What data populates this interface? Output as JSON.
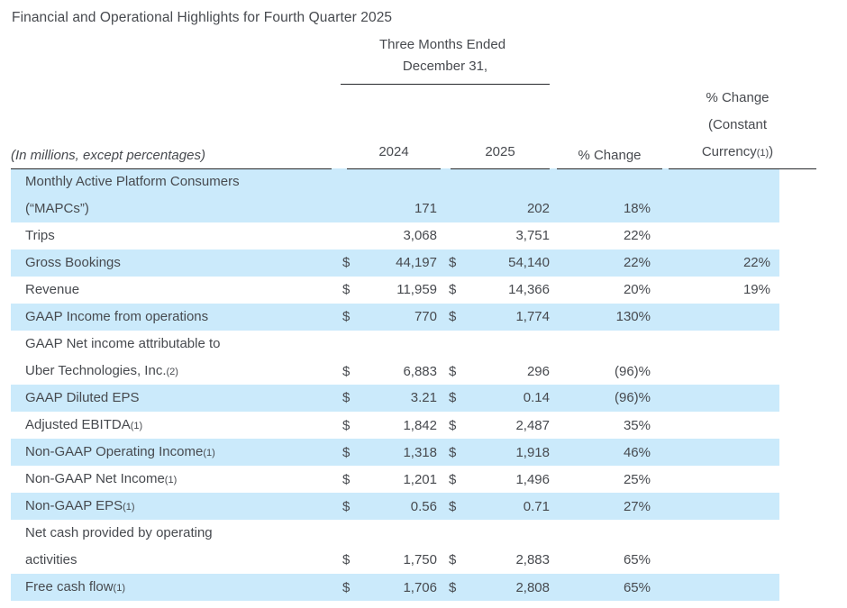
{
  "page": {
    "title": "Financial and Operational Highlights for Fourth Quarter 2025"
  },
  "colors": {
    "highlight_row": "#cbeafb",
    "text": "#474a4f",
    "rule": "#26282b"
  },
  "table": {
    "period_header": {
      "line1": "Three Months Ended",
      "line2": "December 31,"
    },
    "row_label_note": "(In millions, except percentages)",
    "columns": {
      "y2024": "2024",
      "y2025": "2025",
      "pct_change": "% Change",
      "pct_change_cc": {
        "line1": "% Change",
        "line2": "(Constant",
        "line3_text": "Currency",
        "line3_footnote": "(1)",
        "line3_suffix": ")"
      }
    },
    "rows": [
      {
        "highlight": true,
        "lines": [
          {
            "text": "Monthly Active Platform Consumers",
            "fn": ""
          },
          {
            "text": "(“MAPCs”)",
            "fn": ""
          }
        ],
        "d2024": "",
        "v2024": "171",
        "d2025": "",
        "v2025": "202",
        "chg": "18%",
        "cc": ""
      },
      {
        "highlight": false,
        "lines": [
          {
            "text": "Trips",
            "fn": ""
          }
        ],
        "d2024": "",
        "v2024": "3,068",
        "d2025": "",
        "v2025": "3,751",
        "chg": "22%",
        "cc": ""
      },
      {
        "highlight": true,
        "lines": [
          {
            "text": "Gross Bookings",
            "fn": ""
          }
        ],
        "d2024": "$",
        "v2024": "44,197",
        "d2025": "$",
        "v2025": "54,140",
        "chg": "22%",
        "cc": "22%"
      },
      {
        "highlight": false,
        "lines": [
          {
            "text": "Revenue",
            "fn": ""
          }
        ],
        "d2024": "$",
        "v2024": "11,959",
        "d2025": "$",
        "v2025": "14,366",
        "chg": "20%",
        "cc": "19%"
      },
      {
        "highlight": true,
        "lines": [
          {
            "text": "GAAP Income from operations",
            "fn": ""
          }
        ],
        "d2024": "$",
        "v2024": "770",
        "d2025": "$",
        "v2025": "1,774",
        "chg": "130%",
        "cc": ""
      },
      {
        "highlight": false,
        "lines": [
          {
            "text": "GAAP Net income attributable to",
            "fn": ""
          },
          {
            "text": "Uber Technologies, Inc.",
            "fn": "(2)"
          }
        ],
        "d2024": "$",
        "v2024": "6,883",
        "d2025": "$",
        "v2025": "296",
        "chg": "(96)%",
        "cc": ""
      },
      {
        "highlight": true,
        "lines": [
          {
            "text": "GAAP Diluted EPS",
            "fn": ""
          }
        ],
        "d2024": "$",
        "v2024": "3.21",
        "d2025": "$",
        "v2025": "0.14",
        "chg": "(96)%",
        "cc": ""
      },
      {
        "highlight": false,
        "lines": [
          {
            "text": "Adjusted EBITDA",
            "fn": "(1)"
          }
        ],
        "d2024": "$",
        "v2024": "1,842",
        "d2025": "$",
        "v2025": "2,487",
        "chg": "35%",
        "cc": ""
      },
      {
        "highlight": true,
        "lines": [
          {
            "text": "Non-GAAP Operating Income",
            "fn": "(1)"
          }
        ],
        "d2024": "$",
        "v2024": "1,318",
        "d2025": "$",
        "v2025": "1,918",
        "chg": "46%",
        "cc": ""
      },
      {
        "highlight": false,
        "lines": [
          {
            "text": "Non-GAAP Net Income",
            "fn": "(1)"
          }
        ],
        "d2024": "$",
        "v2024": "1,201",
        "d2025": "$",
        "v2025": "1,496",
        "chg": "25%",
        "cc": ""
      },
      {
        "highlight": true,
        "lines": [
          {
            "text": "Non-GAAP EPS",
            "fn": "(1)"
          }
        ],
        "d2024": "$",
        "v2024": "0.56",
        "d2025": "$",
        "v2025": "0.71",
        "chg": "27%",
        "cc": ""
      },
      {
        "highlight": false,
        "lines": [
          {
            "text": "Net cash provided by operating",
            "fn": ""
          },
          {
            "text": "activities",
            "fn": ""
          }
        ],
        "d2024": "$",
        "v2024": "1,750",
        "d2025": "$",
        "v2025": "2,883",
        "chg": "65%",
        "cc": ""
      },
      {
        "highlight": true,
        "lines": [
          {
            "text": "Free cash flow",
            "fn": "(1)"
          }
        ],
        "d2024": "$",
        "v2024": "1,706",
        "d2025": "$",
        "v2025": "2,808",
        "chg": "65%",
        "cc": ""
      }
    ]
  }
}
